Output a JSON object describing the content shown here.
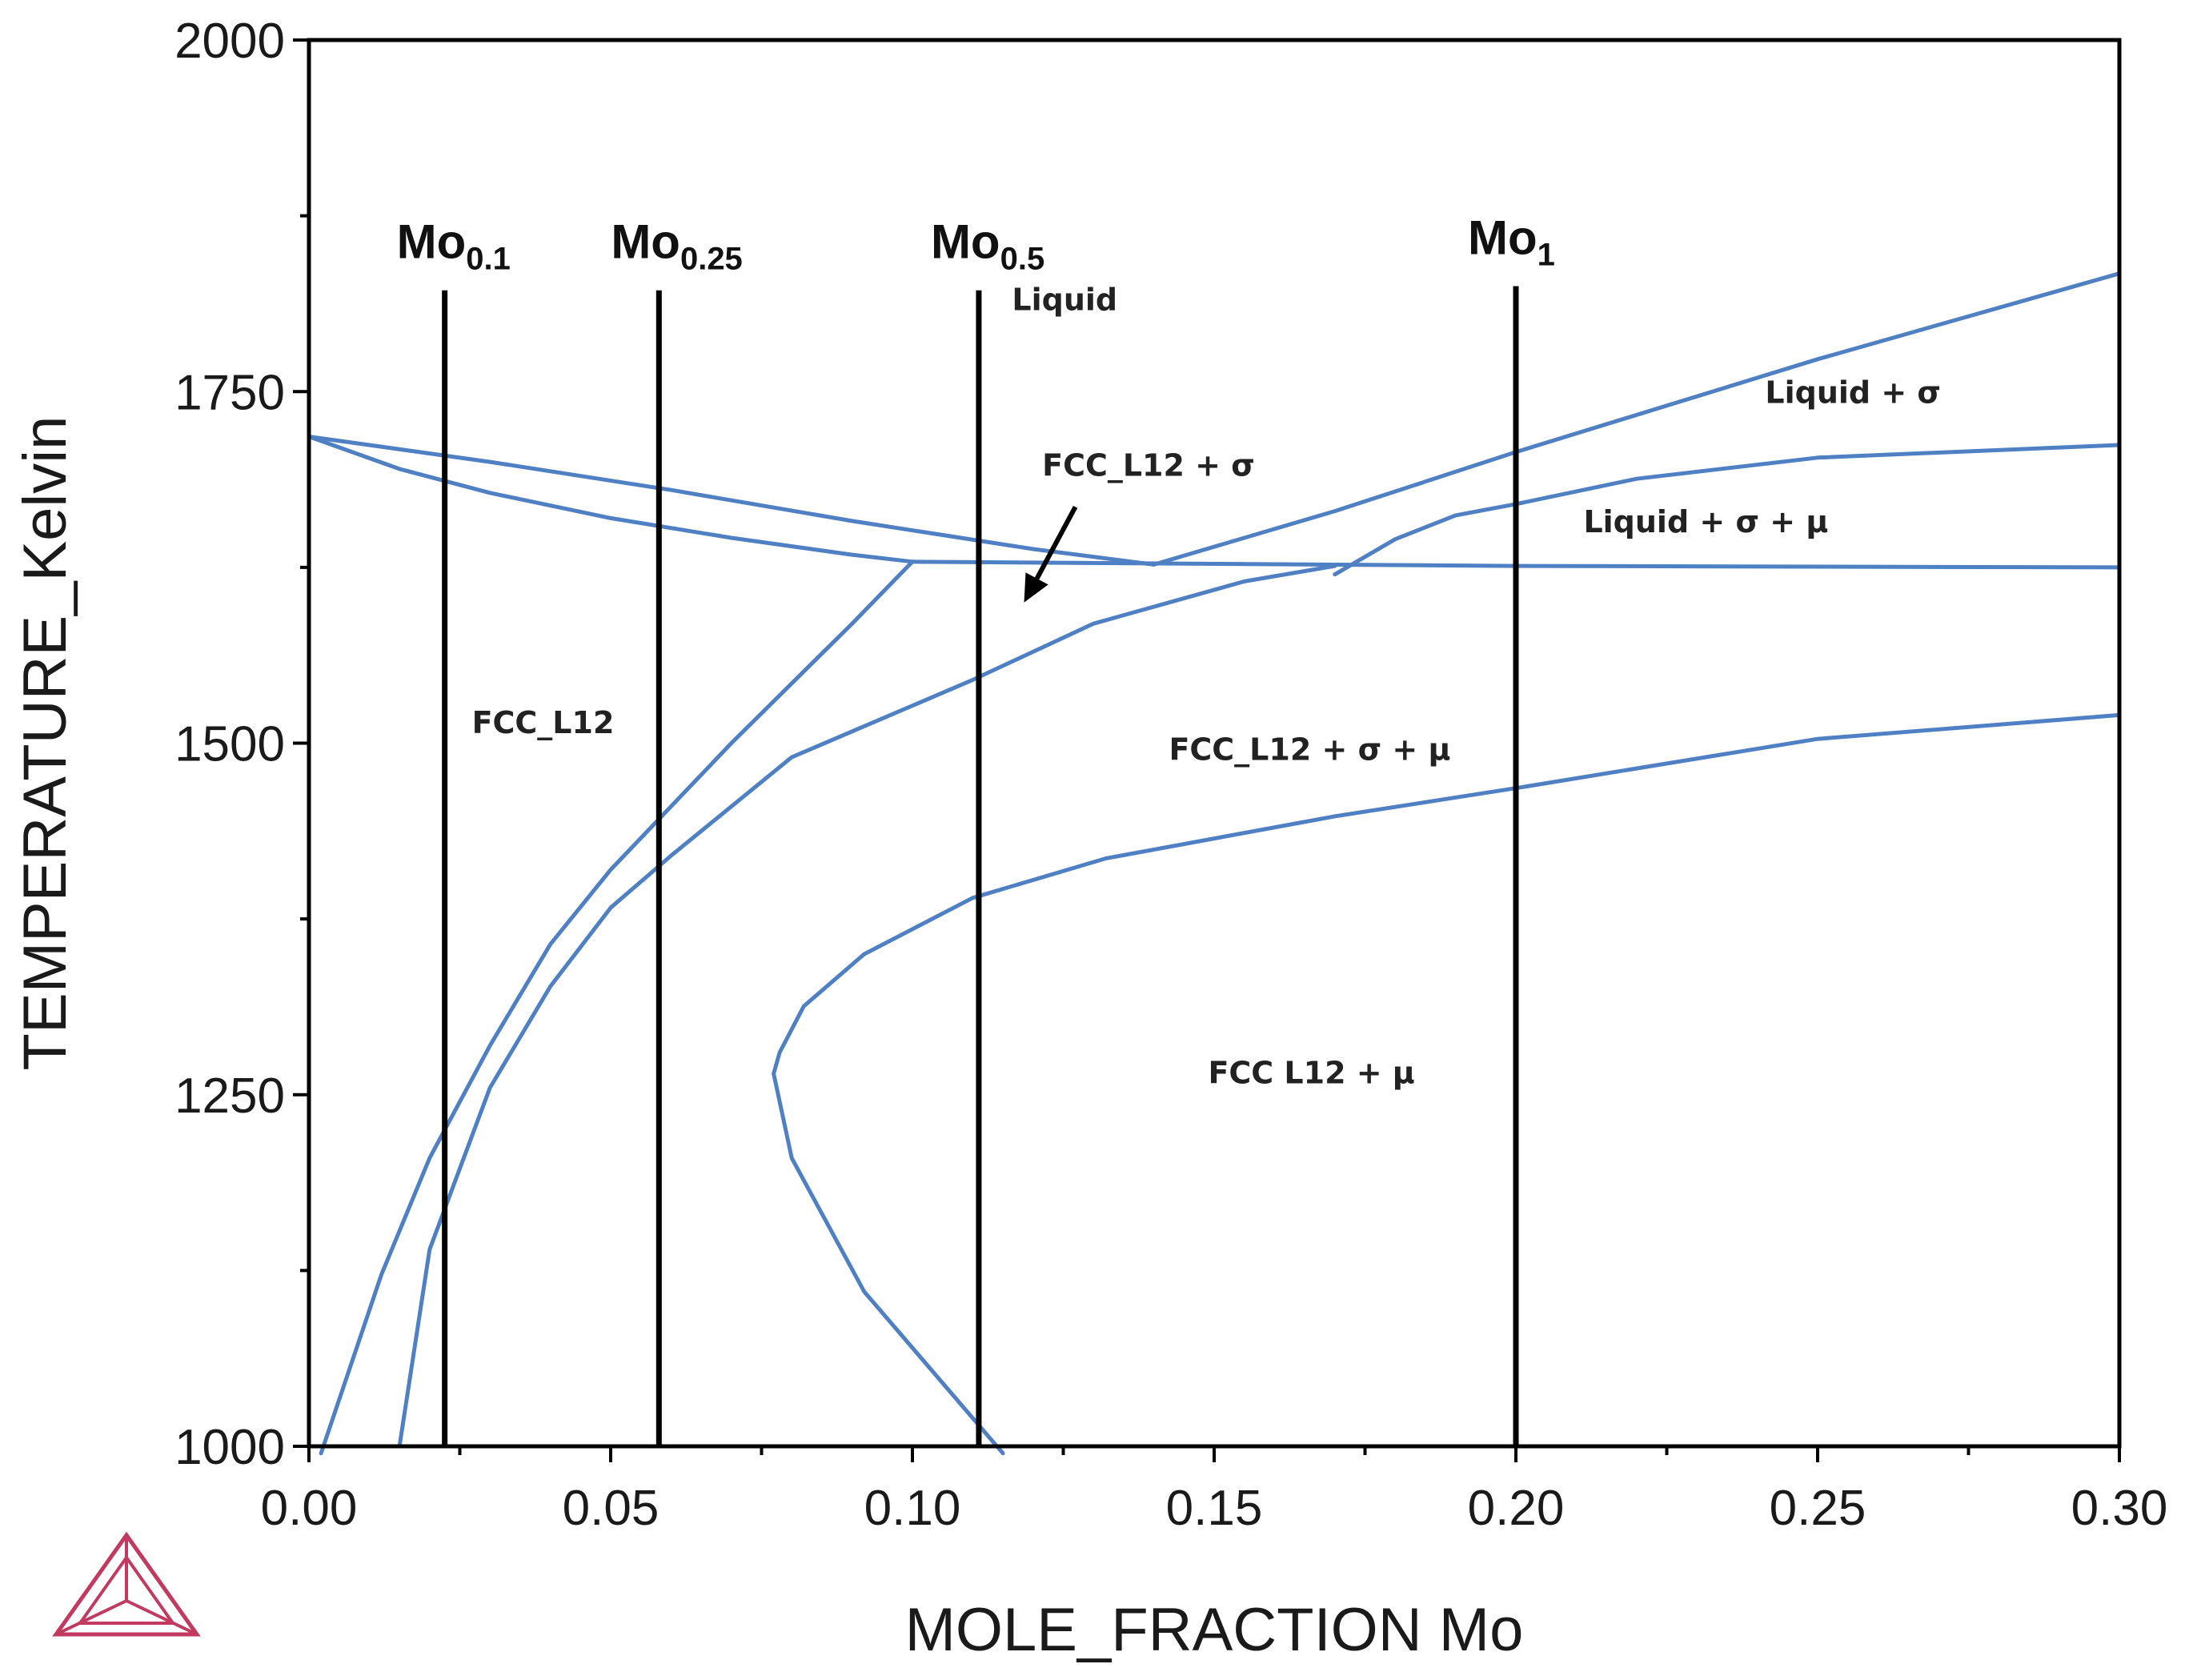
{
  "chart_data": {
    "type": "line",
    "title": "",
    "xlabel": "MOLE_FRACTION Mo",
    "ylabel": "TEMPERATURE_Kelvin",
    "xlim": [
      0.0,
      0.3
    ],
    "ylim": [
      1000,
      2000
    ],
    "x_ticks": [
      "0.00",
      "0.05",
      "0.10",
      "0.15",
      "0.20",
      "0.25",
      "0.30"
    ],
    "y_ticks": [
      "1000",
      "1250",
      "1500",
      "1750",
      "2000"
    ],
    "x_tick_values": [
      0.0,
      0.05,
      0.1,
      0.15,
      0.2,
      0.25,
      0.3
    ],
    "y_tick_values": [
      1000,
      1250,
      1500,
      1750,
      2000
    ],
    "grid": false,
    "legend": "none",
    "compositions": [
      {
        "name": "Mo",
        "sub": "0.1",
        "x": 0.0225,
        "t_top": 1822
      },
      {
        "name": "Mo",
        "sub": "0.25",
        "x": 0.058,
        "t_top": 1822
      },
      {
        "name": "Mo",
        "sub": "0.5",
        "x": 0.111,
        "t_top": 1822
      },
      {
        "name": "Mo",
        "sub": "1",
        "x": 0.2,
        "t_top": 1825
      }
    ],
    "region_labels": [
      {
        "text": "Liquid",
        "x": 0.1165,
        "t": 1808
      },
      {
        "text": "Liquid + σ",
        "x": 0.2413,
        "t": 1742
      },
      {
        "text": "FCC_L12 + σ",
        "x": 0.1215,
        "t": 1690
      },
      {
        "text": "Liquid + σ + μ",
        "x": 0.2112,
        "t": 1650
      },
      {
        "text": "FCC_L12",
        "x": 0.027,
        "t": 1507
      },
      {
        "text": "FCC_L12 + σ + μ",
        "x": 0.1425,
        "t": 1488
      },
      {
        "text": "FCC  L12 +  μ",
        "x": 0.149,
        "t": 1258
      }
    ],
    "annotation_arrow": {
      "from": [
        0.127,
        1668
      ],
      "to": [
        0.1185,
        1600
      ]
    },
    "series": [
      {
        "name": "liquidus",
        "x": [
          0.0,
          0.03,
          0.06,
          0.09,
          0.12,
          0.14
        ],
        "y": [
          1718,
          1700,
          1680,
          1658,
          1638,
          1627
        ]
      },
      {
        "name": "fcc-solidus",
        "x": [
          0.0,
          0.015,
          0.03,
          0.05,
          0.07,
          0.09,
          0.1
        ],
        "y": [
          1718,
          1695,
          1678,
          1660,
          1646,
          1634,
          1629
        ]
      },
      {
        "name": "peritectic-three-phase",
        "x": [
          0.1,
          0.2,
          0.3
        ],
        "y": [
          1629,
          1626,
          1625
        ]
      },
      {
        "name": "sigma-liquidus",
        "x": [
          0.14,
          0.17,
          0.2,
          0.25,
          0.3
        ],
        "y": [
          1627,
          1665,
          1707,
          1773,
          1834
        ]
      },
      {
        "name": "liquid-sigma-mu-upper",
        "x": [
          0.17,
          0.18,
          0.19,
          0.2,
          0.22,
          0.25,
          0.3
        ],
        "y": [
          1620,
          1645,
          1662,
          1670,
          1688,
          1703,
          1712
        ]
      },
      {
        "name": "fcc-sigma-solvus",
        "x": [
          0.1,
          0.09,
          0.07,
          0.05,
          0.04,
          0.03,
          0.02,
          0.012,
          0.002
        ],
        "y": [
          1629,
          1585,
          1500,
          1410,
          1357,
          1285,
          1205,
          1122,
          995
        ]
      },
      {
        "name": "fcc-sigma-mu-lower",
        "x": [
          0.015,
          0.02,
          0.03,
          0.04,
          0.05,
          0.06,
          0.08,
          0.11,
          0.13,
          0.155,
          0.17
        ],
        "y": [
          1000,
          1140,
          1255,
          1327,
          1383,
          1420,
          1490,
          1545,
          1585,
          1615,
          1626
        ]
      },
      {
        "name": "mu-solvus",
        "x": [
          0.115,
          0.092,
          0.08,
          0.077,
          0.078,
          0.082,
          0.092,
          0.11,
          0.132,
          0.17,
          0.2,
          0.25,
          0.3
        ],
        "y": [
          995,
          1110,
          1205,
          1265,
          1280,
          1313,
          1350,
          1390,
          1418,
          1448,
          1468,
          1503,
          1520
        ]
      }
    ]
  },
  "logo": {
    "name": "Thermo-Calc logo",
    "color": "#c23a60"
  },
  "colors": {
    "phase_line": "#4f80c4",
    "alloy_line": "#000000",
    "axis": "#000000"
  }
}
